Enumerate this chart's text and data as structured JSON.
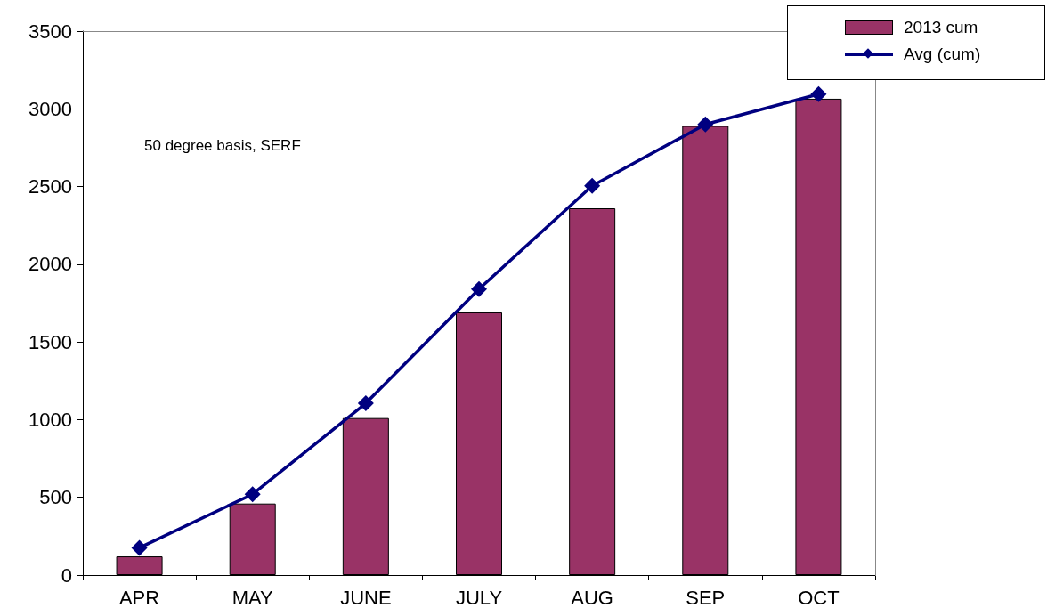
{
  "chart_data": {
    "type": "bar",
    "categories": [
      "APR",
      "MAY",
      "JUNE",
      "JULY",
      "AUG",
      "SEP",
      "OCT"
    ],
    "series": [
      {
        "name": "2013 cum",
        "color": "#993366",
        "values": [
          120,
          460,
          1010,
          1690,
          2360,
          2890,
          3065
        ]
      },
      {
        "name": "Avg (cum)",
        "type": "line",
        "color": "#000080",
        "marker": "diamond",
        "values": [
          175,
          520,
          1105,
          1840,
          2505,
          2900,
          3095
        ]
      }
    ],
    "ylim": [
      0,
      3500
    ],
    "yticks": [
      0,
      500,
      1000,
      1500,
      2000,
      2500,
      3000,
      3500
    ],
    "grid": false,
    "legend": "top right",
    "annotations": [
      "50 degree basis, SERF"
    ]
  }
}
